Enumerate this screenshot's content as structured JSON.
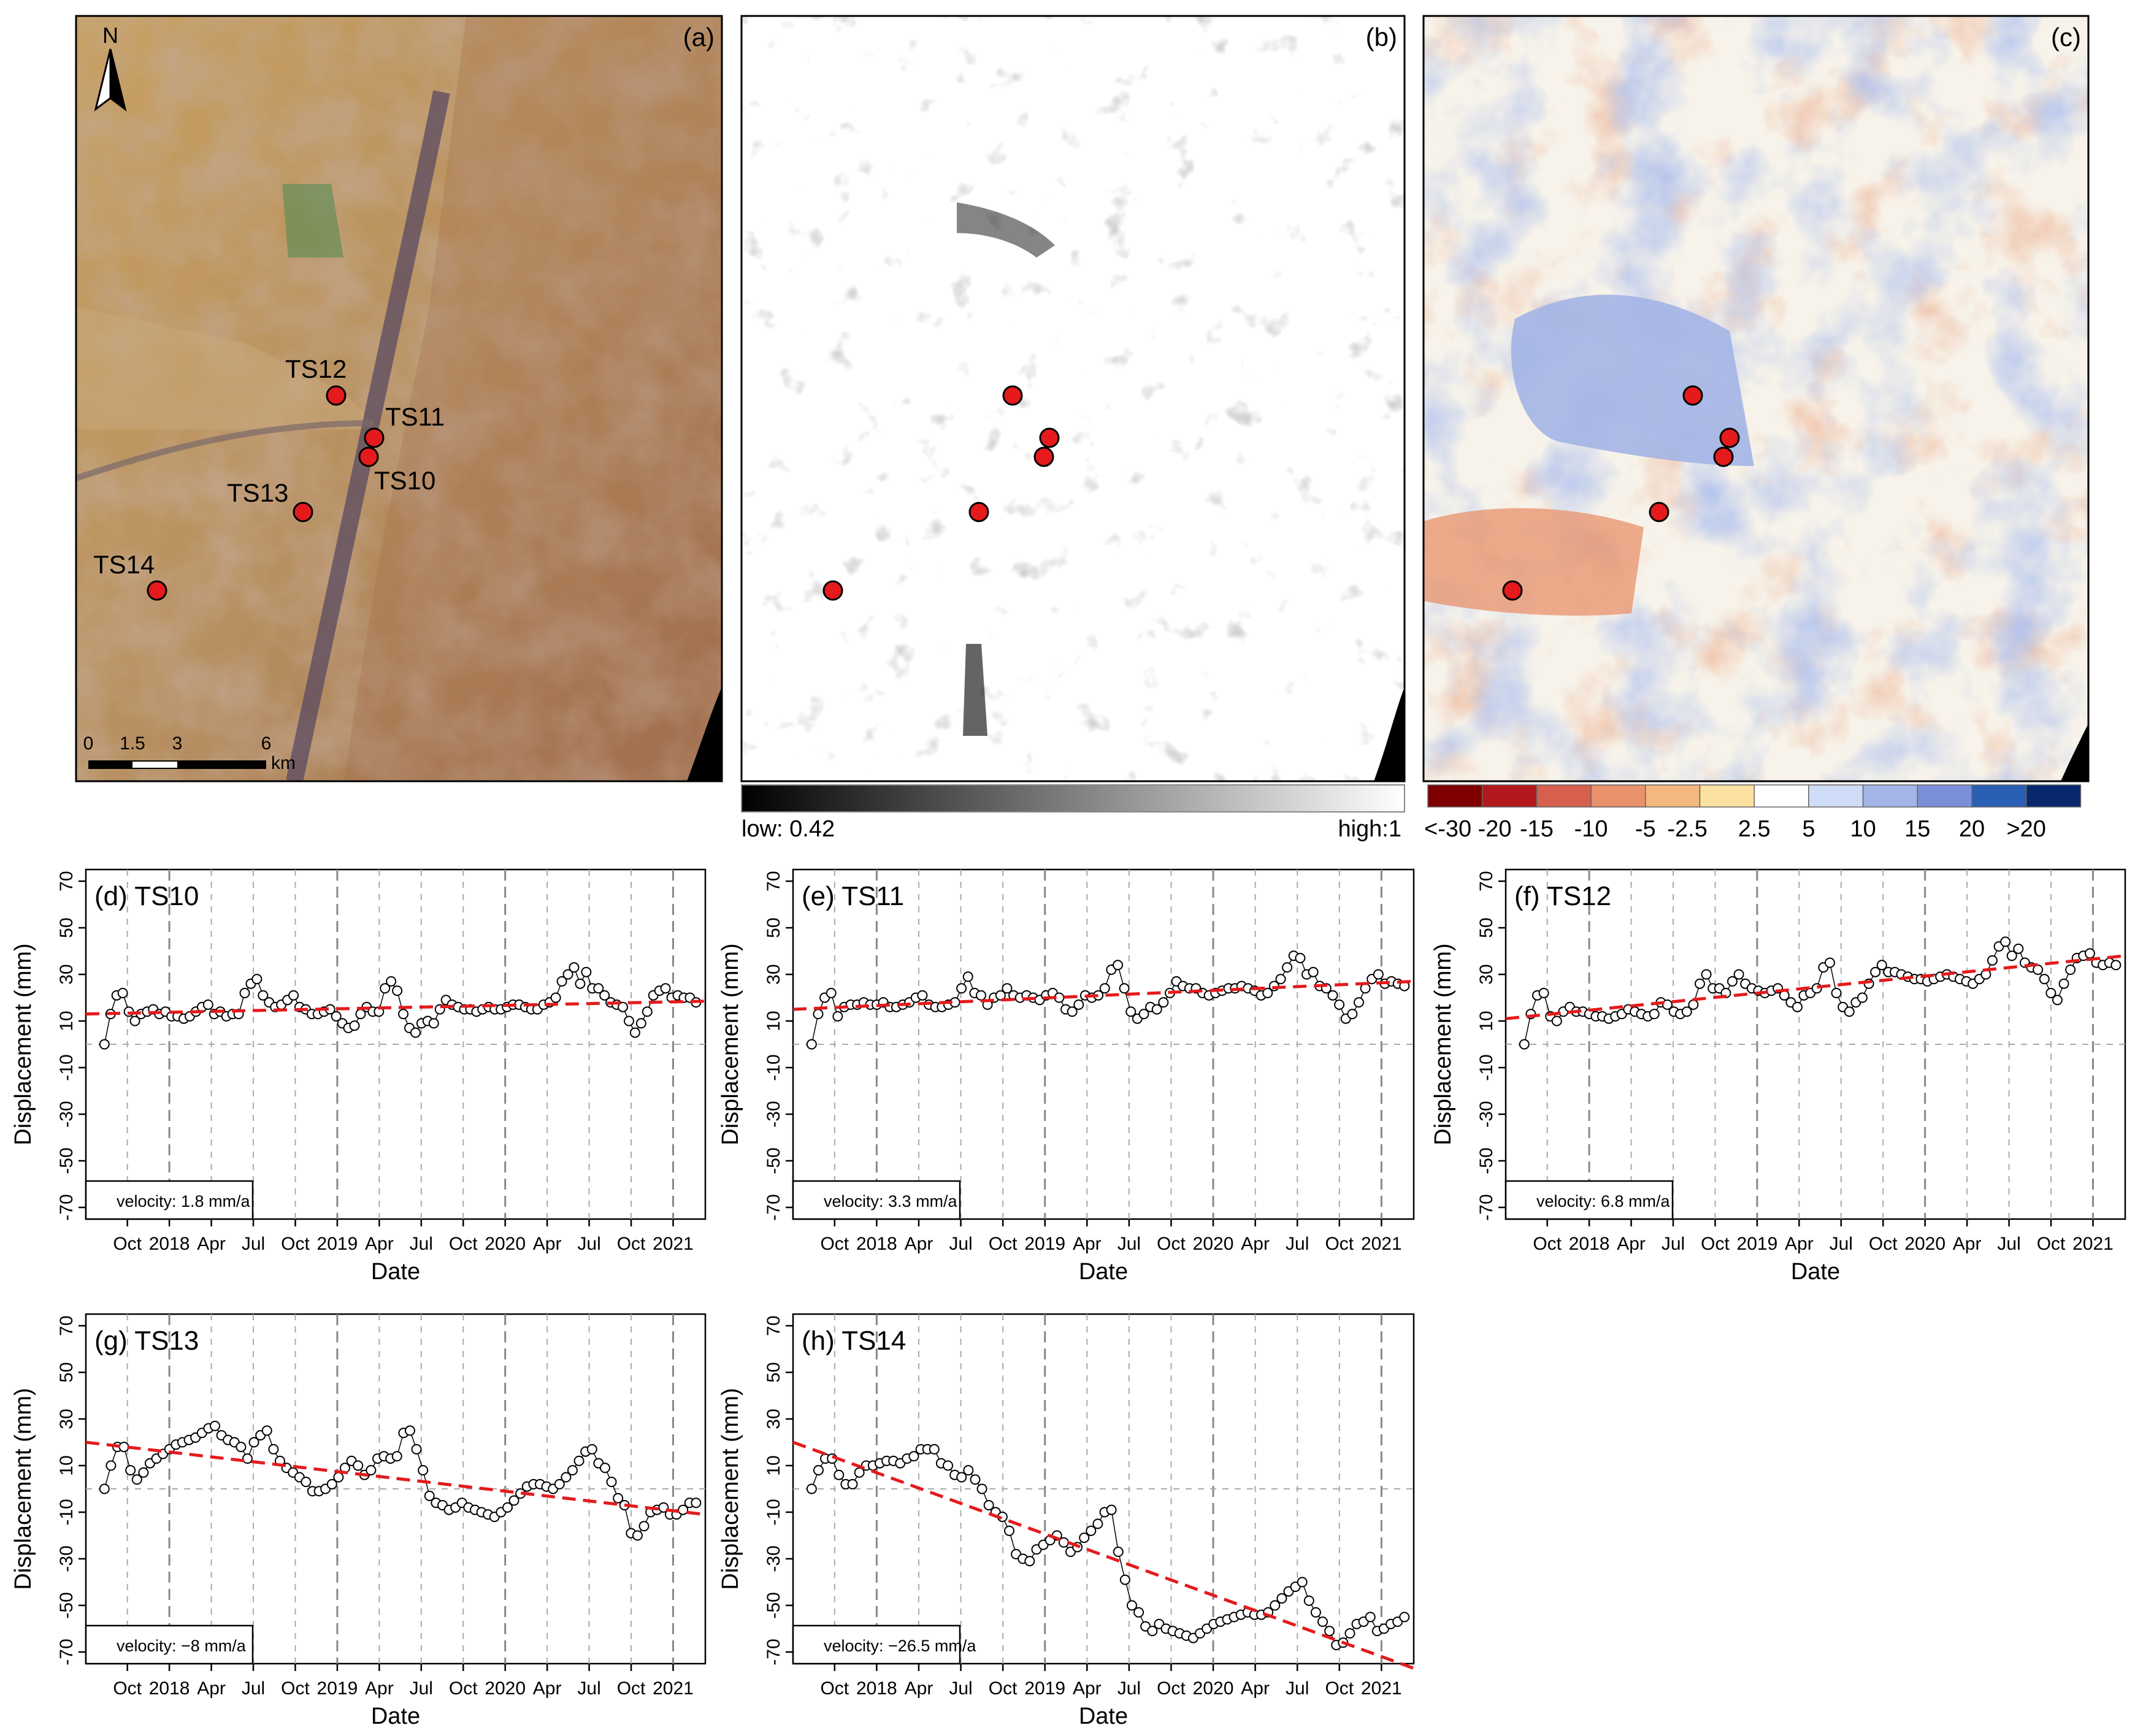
{
  "panels": {
    "a": {
      "label": "(a)",
      "north": "N",
      "scalebar": {
        "ticks": [
          "0",
          "1.5",
          "3",
          "6"
        ],
        "unit": "km"
      },
      "points": [
        "TS10",
        "TS11",
        "TS12",
        "TS13",
        "TS14"
      ]
    },
    "b": {
      "label": "(b)",
      "legend": {
        "low": "low: 0.42",
        "high": "high:1"
      }
    },
    "c": {
      "label": "(c)",
      "legend": {
        "labels": [
          "<-30",
          "-20",
          "-15",
          "-10",
          "-5",
          "-2.5",
          "2.5",
          "5",
          "10",
          "15",
          "20",
          ">20"
        ],
        "colors": [
          "#7f0000",
          "#b2181b",
          "#d6604d",
          "#e8916a",
          "#f4b77e",
          "#fbe0a0",
          "#ffffff",
          "#cfdcf7",
          "#a3b4e6",
          "#7a8fd8",
          "#2a5fb3",
          "#08286e"
        ]
      }
    }
  },
  "colors": {
    "point": "#e41a1c",
    "trend": "#e41a1c"
  },
  "chart_data": [
    {
      "type": "scatter",
      "panel": "(d) TS10",
      "title": "(d) TS10",
      "xlabel": "Date",
      "ylabel": "Displacement (mm)",
      "ylim": [
        -75,
        75
      ],
      "yticks": [
        70,
        50,
        30,
        10,
        -10,
        -30,
        -50,
        -70
      ],
      "xticks": [
        "Oct",
        "2018",
        "Apr",
        "Jul",
        "Oct",
        "2019",
        "Apr",
        "Jul",
        "Oct",
        "2020",
        "Apr",
        "Jul",
        "Oct",
        "2021"
      ],
      "velocity_label": "velocity: 1.8 mm/a",
      "trend": [
        13,
        18.5
      ],
      "values": [
        0,
        13,
        21,
        22,
        14,
        10,
        13,
        14,
        15,
        13,
        14,
        12,
        12,
        11,
        12,
        14,
        16,
        17,
        13,
        14,
        12,
        13,
        13,
        22,
        26,
        28,
        21,
        18,
        16,
        17,
        19,
        21,
        16,
        15,
        13,
        13,
        14,
        15,
        12,
        9,
        7,
        8,
        13,
        16,
        14,
        14,
        24,
        27,
        23,
        13,
        7,
        5,
        9,
        10,
        9,
        15,
        19,
        17,
        16,
        15,
        15,
        14,
        15,
        16,
        15,
        15,
        16,
        17,
        17,
        16,
        15,
        15,
        17,
        18,
        20,
        27,
        30,
        33,
        26,
        31,
        24,
        24,
        21,
        18,
        17,
        16,
        10,
        5,
        9,
        14,
        21,
        23,
        24,
        20,
        21,
        20,
        20,
        18
      ]
    },
    {
      "type": "scatter",
      "panel": "(e) TS11",
      "title": "(e) TS11",
      "xlabel": "Date",
      "ylabel": "Displacement (mm)",
      "ylim": [
        -75,
        75
      ],
      "yticks": [
        70,
        50,
        30,
        10,
        -10,
        -30,
        -50,
        -70
      ],
      "xticks": [
        "Oct",
        "2018",
        "Apr",
        "Jul",
        "Oct",
        "2019",
        "Apr",
        "Jul",
        "Oct",
        "2020",
        "Apr",
        "Jul",
        "Oct",
        "2021"
      ],
      "velocity_label": "velocity: 3.3 mm/a",
      "trend": [
        15,
        27
      ],
      "values": [
        0,
        13,
        20,
        22,
        12,
        16,
        17,
        17,
        18,
        17,
        17,
        18,
        16,
        16,
        17,
        18,
        20,
        21,
        17,
        16,
        16,
        17,
        18,
        24,
        29,
        22,
        21,
        17,
        20,
        21,
        24,
        21,
        20,
        21,
        20,
        19,
        21,
        22,
        20,
        15,
        14,
        17,
        21,
        20,
        21,
        24,
        32,
        34,
        24,
        14,
        11,
        13,
        16,
        15,
        18,
        22,
        27,
        25,
        24,
        24,
        22,
        21,
        22,
        23,
        24,
        24,
        25,
        24,
        23,
        21,
        22,
        25,
        28,
        33,
        38,
        37,
        30,
        31,
        25,
        24,
        21,
        17,
        11,
        13,
        18,
        24,
        28,
        30,
        26,
        27,
        26,
        25
      ]
    },
    {
      "type": "scatter",
      "panel": "(f) TS12",
      "title": "(f) TS12",
      "xlabel": "Date",
      "ylabel": "Displacement (mm)",
      "ylim": [
        -75,
        75
      ],
      "yticks": [
        70,
        50,
        30,
        10,
        -10,
        -30,
        -50,
        -70
      ],
      "xticks": [
        "Oct",
        "2018",
        "Apr",
        "Jul",
        "Oct",
        "2019",
        "Apr",
        "Jul",
        "Oct",
        "2020",
        "Apr",
        "Jul",
        "Oct",
        "2021"
      ],
      "velocity_label": "velocity: 6.8 mm/a",
      "trend": [
        11,
        38
      ],
      "values": [
        0,
        13,
        21,
        22,
        12,
        10,
        14,
        16,
        14,
        14,
        13,
        12,
        12,
        11,
        12,
        13,
        15,
        14,
        13,
        12,
        13,
        18,
        17,
        14,
        13,
        14,
        17,
        26,
        30,
        24,
        24,
        22,
        27,
        30,
        26,
        24,
        23,
        22,
        23,
        24,
        21,
        18,
        16,
        21,
        22,
        24,
        33,
        35,
        22,
        16,
        14,
        18,
        20,
        26,
        31,
        34,
        31,
        31,
        30,
        29,
        28,
        28,
        27,
        28,
        29,
        30,
        29,
        28,
        27,
        26,
        28,
        30,
        36,
        42,
        44,
        38,
        41,
        35,
        33,
        32,
        28,
        22,
        19,
        26,
        32,
        37,
        38,
        39,
        35,
        34,
        35,
        34
      ]
    },
    {
      "type": "scatter",
      "panel": "(g) TS13",
      "title": "(g) TS13",
      "xlabel": "Date",
      "ylabel": "Displacement (mm)",
      "ylim": [
        -75,
        75
      ],
      "yticks": [
        70,
        50,
        30,
        10,
        -10,
        -30,
        -50,
        -70
      ],
      "xticks": [
        "Oct",
        "2018",
        "Apr",
        "Jul",
        "Oct",
        "2019",
        "Apr",
        "Jul",
        "Oct",
        "2020",
        "Apr",
        "Jul",
        "Oct",
        "2021"
      ],
      "velocity_label": "velocity: −8 mm/a",
      "trend": [
        20,
        -11
      ],
      "values": [
        0,
        10,
        18,
        18,
        8,
        4,
        7,
        11,
        13,
        15,
        17,
        19,
        20,
        21,
        22,
        24,
        26,
        27,
        23,
        21,
        20,
        18,
        13,
        20,
        23,
        25,
        17,
        12,
        9,
        7,
        5,
        3,
        -1,
        -1,
        0,
        2,
        5,
        9,
        12,
        10,
        6,
        8,
        13,
        14,
        13,
        14,
        24,
        25,
        17,
        8,
        -3,
        -6,
        -7,
        -9,
        -8,
        -6,
        -8,
        -9,
        -10,
        -11,
        -12,
        -10,
        -8,
        -5,
        -2,
        1,
        2,
        2,
        1,
        0,
        2,
        5,
        8,
        12,
        16,
        17,
        11,
        9,
        3,
        -4,
        -7,
        -19,
        -20,
        -16,
        -10,
        -9,
        -8,
        -11,
        -11,
        -9,
        -6,
        -6
      ]
    },
    {
      "type": "scatter",
      "panel": "(h) TS14",
      "title": "(h) TS14",
      "xlabel": "Date",
      "ylabel": "Displacement (mm)",
      "ylim": [
        -75,
        75
      ],
      "yticks": [
        70,
        50,
        30,
        10,
        -10,
        -30,
        -50,
        -70
      ],
      "xticks": [
        "Oct",
        "2018",
        "Apr",
        "Jul",
        "Oct",
        "2019",
        "Apr",
        "Jul",
        "Oct",
        "2020",
        "Apr",
        "Jul",
        "Oct",
        "2021"
      ],
      "velocity_label": "velocity: −26.5 mm/a",
      "trend": [
        20,
        -77
      ],
      "values": [
        0,
        8,
        13,
        13,
        6,
        2,
        2,
        7,
        10,
        10,
        11,
        12,
        12,
        11,
        13,
        14,
        17,
        17,
        17,
        11,
        10,
        6,
        5,
        8,
        4,
        0,
        -7,
        -10,
        -12,
        -18,
        -28,
        -30,
        -31,
        -26,
        -24,
        -22,
        -20,
        -23,
        -27,
        -25,
        -21,
        -18,
        -15,
        -10,
        -9,
        -27,
        -39,
        -50,
        -53,
        -59,
        -61,
        -58,
        -60,
        -61,
        -62,
        -63,
        -64,
        -62,
        -60,
        -58,
        -57,
        -56,
        -55,
        -54,
        -53,
        -54,
        -54,
        -53,
        -50,
        -47,
        -44,
        -42,
        -40,
        -48,
        -53,
        -57,
        -61,
        -67,
        -66,
        -62,
        -58,
        -57,
        -55,
        -61,
        -60,
        -58,
        -57,
        -55
      ]
    }
  ]
}
